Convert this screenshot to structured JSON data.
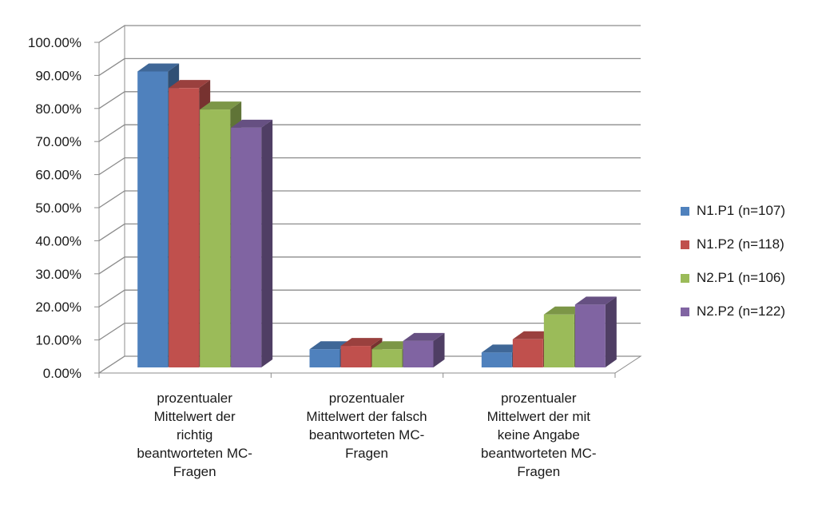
{
  "chart_data": {
    "type": "bar",
    "title": "",
    "xlabel": "",
    "ylabel": "",
    "ylim": [
      0,
      100
    ],
    "yticks": [
      "0.00%",
      "10.00%",
      "20.00%",
      "30.00%",
      "40.00%",
      "50.00%",
      "60.00%",
      "70.00%",
      "80.00%",
      "90.00%",
      "100.00%"
    ],
    "categories": [
      "prozentualer\nMittelwert der\nrichtig\nbeantworteten MC-\nFragen",
      "prozentualer\nMittelwert der falsch\nbeantworteten MC-\nFragen",
      "prozentualer\nMittelwert der mit\nkeine Angabe\nbeantworteten MC-\nFragen"
    ],
    "series": [
      {
        "name": "N1.P1 (n=107)",
        "color": "#4f81bd",
        "values": [
          89.5,
          5.5,
          4.5
        ]
      },
      {
        "name": "N1.P2 (n=118)",
        "color": "#c0504d",
        "values": [
          84.5,
          6.5,
          8.5
        ]
      },
      {
        "name": "N2.P1 (n=106)",
        "color": "#9bbb59",
        "values": [
          78.0,
          5.5,
          16.0
        ]
      },
      {
        "name": "N2.P2 (n=122)",
        "color": "#8064a2",
        "values": [
          72.5,
          8.0,
          19.0
        ]
      }
    ],
    "grid": true,
    "legend": "right",
    "style": "3d-clustered-column"
  }
}
